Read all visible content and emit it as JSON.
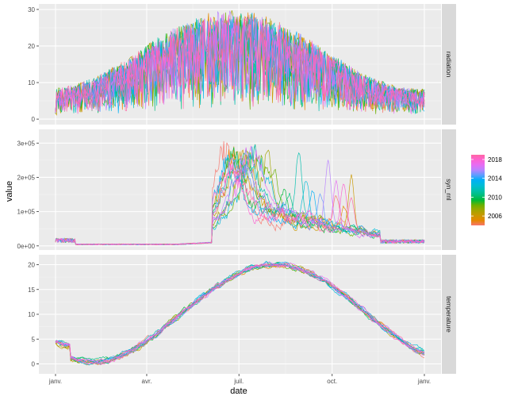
{
  "chart_data": {
    "type": "line",
    "xlabel": "date",
    "ylabel": "value",
    "x_ticks": [
      {
        "date": "01-01",
        "label": "janv."
      },
      {
        "date": "04-01",
        "label": "avr."
      },
      {
        "date": "07-01",
        "label": "juil."
      },
      {
        "date": "10-01",
        "label": "oct."
      },
      {
        "date": "12-31",
        "label": "janv."
      }
    ],
    "xlim": [
      "01-01",
      "12-31"
    ],
    "grid": true,
    "legend": {
      "placement": "right",
      "type": "colorbar",
      "range": [
        2004,
        2019
      ],
      "labels": [
        "2018",
        "2014",
        "2010",
        "2006"
      ],
      "label_values": [
        2018,
        2014,
        2010,
        2006
      ]
    },
    "panels": [
      {
        "strip": "radiation",
        "ylim": [
          -1.5,
          31.5
        ],
        "yticks": [
          0,
          10,
          20,
          30
        ],
        "ytick_labels": [
          "0",
          "10",
          "20",
          "30"
        ],
        "envelope": {
          "min_winter": 1,
          "max_winter": 8.5,
          "max_summer": 30,
          "peak": "06-25"
        }
      },
      {
        "strip": "syn_rnl",
        "ylim": [
          -12000,
          340000
        ],
        "yticks": [
          0,
          100000,
          200000,
          300000
        ],
        "ytick_labels": [
          "0e+00",
          "1e+05",
          "2e+05",
          "3e+05"
        ],
        "peak_value": 340000
      },
      {
        "strip": "temperature",
        "ylim": [
          -2,
          22
        ],
        "yticks": [
          0,
          5,
          10,
          15,
          20
        ],
        "ytick_labels": [
          "0",
          "5",
          "10",
          "15",
          "20"
        ],
        "seasonal": {
          "winter_min": 1.5,
          "summer_max": 20,
          "peak": "08-05"
        }
      }
    ],
    "series": [
      {
        "year": 2004,
        "color": "#F8766D"
      },
      {
        "year": 2005,
        "color": "#E58700"
      },
      {
        "year": 2006,
        "color": "#C99800"
      },
      {
        "year": 2007,
        "color": "#A3A500"
      },
      {
        "year": 2008,
        "color": "#6BB100"
      },
      {
        "year": 2009,
        "color": "#00BA38"
      },
      {
        "year": 2010,
        "color": "#00BF7D"
      },
      {
        "year": 2011,
        "color": "#00C0AF"
      },
      {
        "year": 2012,
        "color": "#00BCD8"
      },
      {
        "year": 2013,
        "color": "#00B0F6"
      },
      {
        "year": 2014,
        "color": "#619CFF"
      },
      {
        "year": 2015,
        "color": "#B983FF"
      },
      {
        "year": 2016,
        "color": "#E76BF3"
      },
      {
        "year": 2017,
        "color": "#FD61D1"
      },
      {
        "year": 2018,
        "color": "#FF67A4"
      }
    ]
  }
}
